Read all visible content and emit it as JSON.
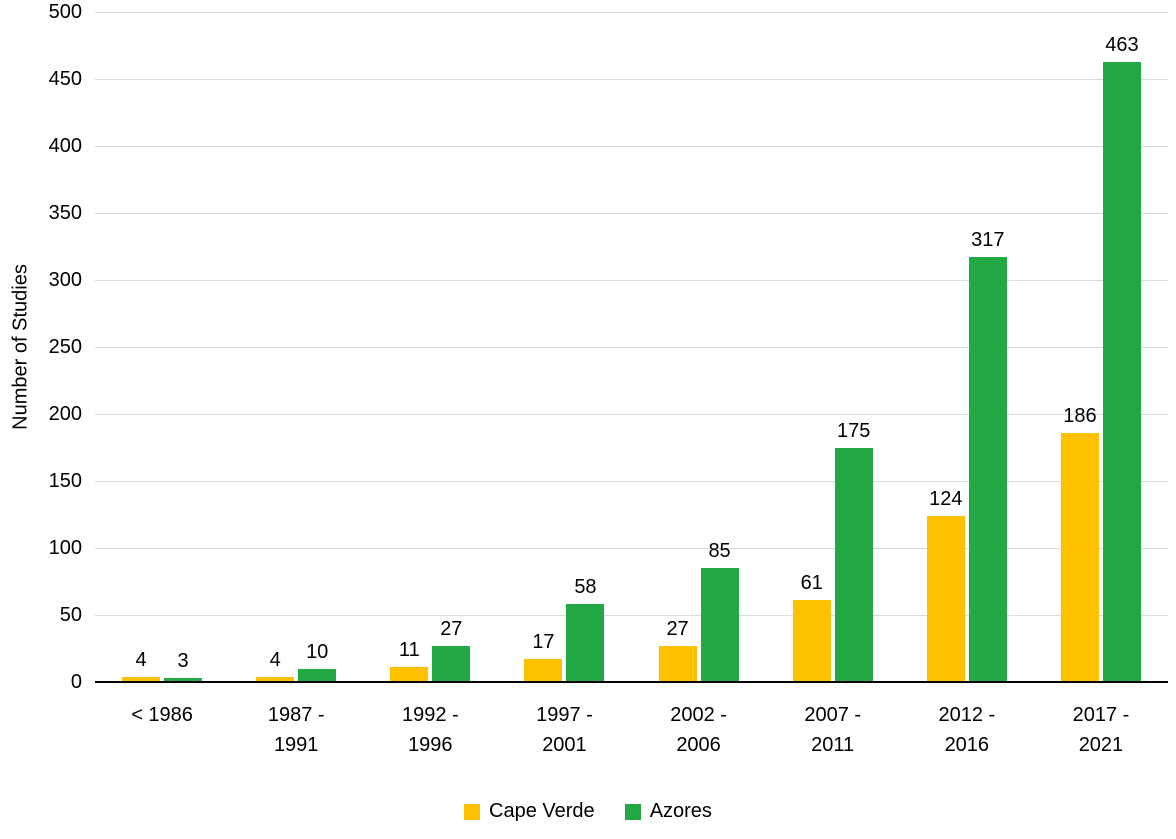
{
  "chart_data": {
    "type": "bar",
    "title": "",
    "xlabel": "",
    "ylabel": "Number of Studies",
    "categories": [
      "< 1986",
      "1987 - 1991",
      "1992 - 1996",
      "1997 - 2001",
      "2002 - 2006",
      "2007 - 2011",
      "2012 - 2016",
      "2017 - 2021"
    ],
    "categories_multiline": [
      [
        "< 1986"
      ],
      [
        "1987 -",
        "1991"
      ],
      [
        "1992 -",
        "1996"
      ],
      [
        "1997 -",
        "2001"
      ],
      [
        "2002 -",
        "2006"
      ],
      [
        "2007 -",
        "2011"
      ],
      [
        "2012 -",
        "2016"
      ],
      [
        "2017 -",
        "2021"
      ]
    ],
    "series": [
      {
        "name": "Cape Verde",
        "color": "#FFC000",
        "values": [
          4,
          4,
          11,
          17,
          27,
          61,
          124,
          186
        ]
      },
      {
        "name": "Azores",
        "color": "#22A844",
        "values": [
          3,
          10,
          27,
          58,
          85,
          175,
          317,
          463
        ]
      }
    ],
    "ylim": [
      0,
      500
    ],
    "ytick_interval": 50,
    "yticks": [
      0,
      50,
      100,
      150,
      200,
      250,
      300,
      350,
      400,
      450,
      500
    ],
    "grid": true,
    "legend_position": "bottom"
  },
  "colors": {
    "background": "#FFFFFF",
    "grid": "#D9D9D9",
    "axis": "#000000",
    "text": "#000000"
  }
}
